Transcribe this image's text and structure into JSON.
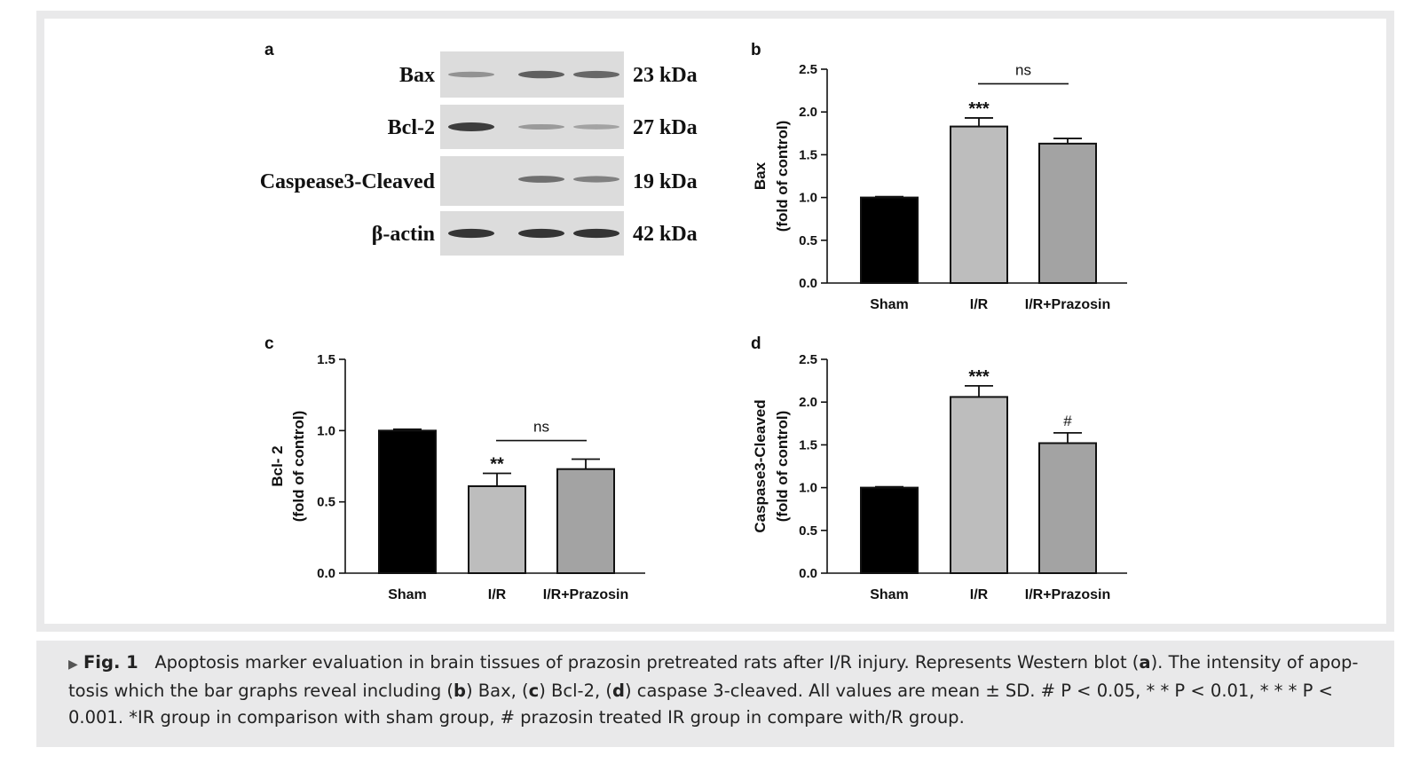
{
  "figure": {
    "panel_a": {
      "letter": "a",
      "bands": [
        {
          "label": "Bax",
          "size": "23 kDa",
          "intensity": [
            0.35,
            0.65,
            0.6
          ]
        },
        {
          "label": "Bcl-2",
          "size": "27 kDa",
          "intensity": [
            0.85,
            0.3,
            0.25
          ]
        },
        {
          "label": "Caspease3-Cleaved",
          "size": "19 kDa",
          "intensity": [
            0.0,
            0.55,
            0.45
          ]
        },
        {
          "label": "β-actin",
          "size": "42 kDa",
          "intensity": [
            0.9,
            0.9,
            0.9
          ]
        }
      ]
    }
  },
  "chart_data": [
    {
      "panel": "b",
      "type": "bar",
      "categories": [
        "Sham",
        "I/R",
        "I/R+Prazosin"
      ],
      "values": [
        1.0,
        1.83,
        1.63
      ],
      "errors": [
        0.01,
        0.1,
        0.06
      ],
      "colors": [
        "#000000",
        "#bdbdbd",
        "#a3a3a3"
      ],
      "ylabel_lines": [
        "Bax",
        "(fold of control)"
      ],
      "ylim": [
        0,
        2.5
      ],
      "yticks": [
        "0.0",
        "0.5",
        "1.0",
        "1.5",
        "2.0",
        "2.5"
      ],
      "annotations": {
        "stars": [
          "",
          "***",
          ""
        ],
        "hash": [
          "",
          "",
          ""
        ],
        "bracket": {
          "from": 1,
          "to": 2,
          "label": "ns",
          "y": 2.33
        }
      }
    },
    {
      "panel": "c",
      "type": "bar",
      "categories": [
        "Sham",
        "I/R",
        "I/R+Prazosin"
      ],
      "values": [
        1.0,
        0.61,
        0.73
      ],
      "errors": [
        0.01,
        0.09,
        0.07
      ],
      "colors": [
        "#000000",
        "#bdbdbd",
        "#a3a3a3"
      ],
      "ylabel_lines": [
        "Bcl- 2",
        "(fold of control)"
      ],
      "ylim": [
        0,
        1.5
      ],
      "yticks": [
        "0.0",
        "0.5",
        "1.0",
        "1.5"
      ],
      "annotations": {
        "stars": [
          "",
          "**",
          ""
        ],
        "hash": [
          "",
          "",
          ""
        ],
        "bracket": {
          "from": 1,
          "to": 2,
          "label": "ns",
          "y": 0.93
        }
      }
    },
    {
      "panel": "d",
      "type": "bar",
      "categories": [
        "Sham",
        "I/R",
        "I/R+Prazosin"
      ],
      "values": [
        1.0,
        2.06,
        1.52
      ],
      "errors": [
        0.01,
        0.13,
        0.12
      ],
      "colors": [
        "#000000",
        "#bdbdbd",
        "#a3a3a3"
      ],
      "ylabel_lines": [
        "Caspase3-Cleaved",
        "(fold of control)"
      ],
      "ylim": [
        0,
        2.5
      ],
      "yticks": [
        "0.0",
        "0.5",
        "1.0",
        "1.5",
        "2.0",
        "2.5"
      ],
      "annotations": {
        "stars": [
          "",
          "***",
          ""
        ],
        "hash": [
          "",
          "",
          "#"
        ],
        "bracket": null
      }
    }
  ],
  "caption": {
    "fig_label": "Fig. 1",
    "text_1": "Apoptosis marker evaluation in brain tissues of prazosin pretreated rats after I/R injury. Represents Western blot (",
    "a": "a",
    "text_2": "). The intensity of apop-tosis which the bar graphs reveal including (",
    "b": "b",
    "text_3": ") Bax, (",
    "c": "c",
    "text_4": ") Bcl-2, (",
    "d": "d",
    "text_5": ") caspase 3-cleaved. All values are mean ± SD. # P < 0.05, * * P < 0.01, * * * P < 0.001. *IR group in comparison with sham group, # prazosin treated IR group in compare with/R group."
  }
}
